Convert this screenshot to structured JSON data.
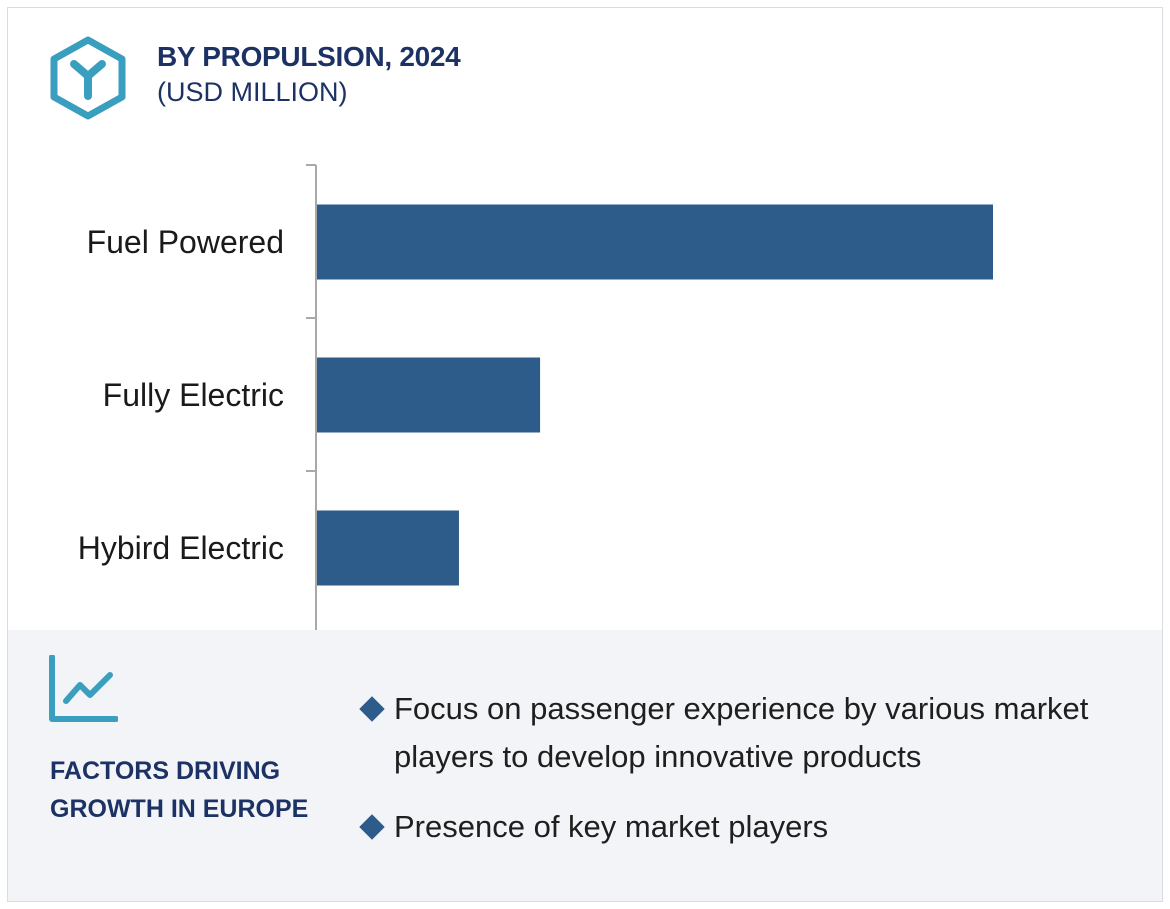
{
  "header": {
    "title": "BY PROPULSION, 2024",
    "subtitle": "(USD MILLION)",
    "logo_icon": "y-hexagon-icon"
  },
  "colors": {
    "title": "#1d3264",
    "bar": "#2d5b8a",
    "accent": "#3a9fbf",
    "panel": "#f3f4f8"
  },
  "chart_data": {
    "type": "bar",
    "orientation": "horizontal",
    "title": "BY PROPULSION, 2024",
    "subtitle": "(USD MILLION)",
    "categories": [
      "Fuel Powered",
      "Fully Electric",
      "Hybird Electric"
    ],
    "values": [
      100,
      33,
      21
    ],
    "xlim": [
      0,
      100
    ],
    "xlabel": "",
    "ylabel": "",
    "grid": false,
    "legend": "none"
  },
  "factors": {
    "icon": "trend-chart-icon",
    "title": "FACTORS DRIVING GROWTH IN EUROPE",
    "items": [
      {
        "text": "Focus on passenger experience by various market players to develop innovative products"
      },
      {
        "text": "Presence of key market players"
      }
    ]
  }
}
